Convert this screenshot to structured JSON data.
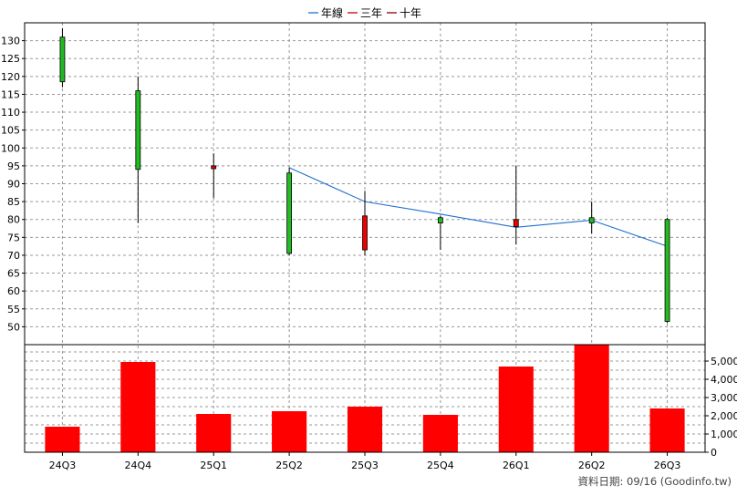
{
  "legend": [
    {
      "label": "年線",
      "color": "#1f6fd0"
    },
    {
      "label": "三年",
      "color": "#cc0000"
    },
    {
      "label": "十年",
      "color": "#8b0000"
    }
  ],
  "footer": "資料日期: 09/16  (Goodinfo.tw)",
  "chart_data": {
    "type": "candlestick",
    "categories": [
      "24Q3",
      "24Q4",
      "25Q1",
      "25Q2",
      "25Q3",
      "25Q4",
      "26Q1",
      "26Q2",
      "26Q3"
    ],
    "price": {
      "ylim": [
        45,
        135
      ],
      "yticks": [
        50,
        55,
        60,
        65,
        70,
        75,
        80,
        85,
        90,
        95,
        100,
        105,
        110,
        115,
        120,
        125,
        130
      ],
      "candles": [
        {
          "open": 118.5,
          "close": 131.0,
          "high": 133.5,
          "low": 117.0,
          "color": "#22bb22"
        },
        {
          "open": 94.0,
          "close": 116.0,
          "high": 120.0,
          "low": 79.0,
          "color": "#22bb22"
        },
        {
          "open": 94.2,
          "close": 95.0,
          "high": 98.5,
          "low": 86.0,
          "color": "#ee0000"
        },
        {
          "open": 70.5,
          "close": 93.0,
          "high": 94.5,
          "low": 70.0,
          "color": "#22bb22"
        },
        {
          "open": 71.5,
          "close": 81.0,
          "high": 88.0,
          "low": 70.0,
          "color": "#ee0000"
        },
        {
          "open": 79.0,
          "close": 80.5,
          "high": 81.0,
          "low": 71.5,
          "color": "#22bb22"
        },
        {
          "open": 78.0,
          "close": 80.0,
          "high": 95.0,
          "low": 73.0,
          "color": "#ee0000"
        },
        {
          "open": 79.0,
          "close": 80.5,
          "high": 85.0,
          "low": 76.0,
          "color": "#22bb22"
        },
        {
          "open": 51.5,
          "close": 80.0,
          "high": 80.5,
          "low": 51.0,
          "color": "#22bb22"
        }
      ],
      "series": [
        {
          "name": "年線",
          "color": "#1f6fd0",
          "values": [
            null,
            null,
            null,
            94.5,
            85.0,
            81.5,
            77.8,
            79.8,
            72.5
          ]
        }
      ]
    },
    "volume": {
      "ylim": [
        0,
        5900
      ],
      "yticks": [
        0,
        1000,
        2000,
        3000,
        4000,
        5000
      ],
      "ytick_labels": [
        "0",
        "1,000",
        "2,000",
        "3,000",
        "4,000",
        "5,000"
      ],
      "values": [
        1400,
        4950,
        2100,
        2250,
        2500,
        2050,
        4700,
        5900,
        2400
      ],
      "color": "#ff0000"
    },
    "grid": true,
    "legend_position": "top-center"
  }
}
